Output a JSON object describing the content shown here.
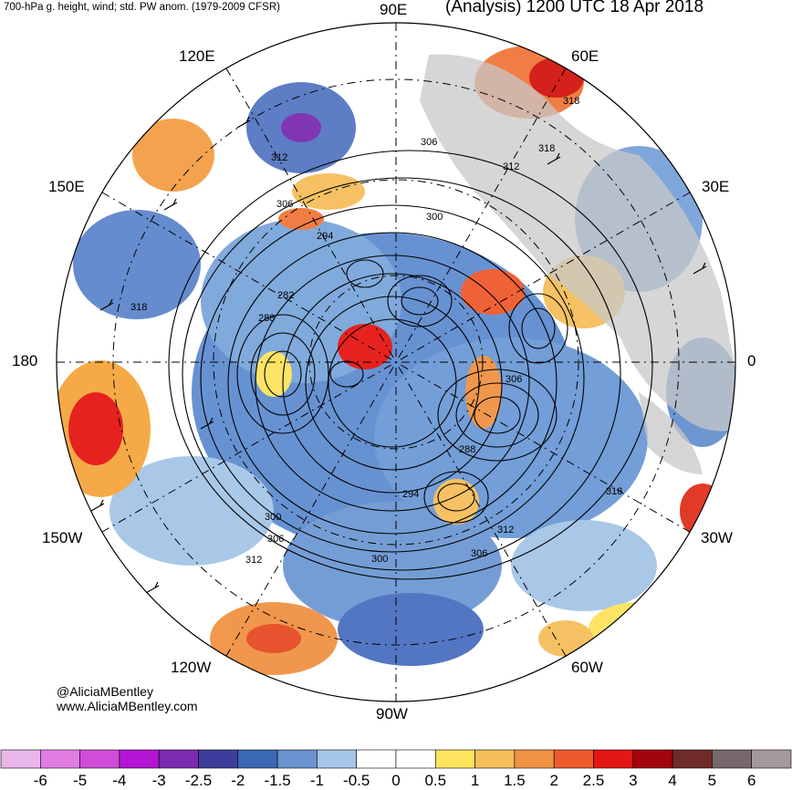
{
  "header": {
    "left_title": "700-hPa g. height, wind; std. PW anom. (1979-2009 CFSR)",
    "right_title": "(Analysis) 1200 UTC 18 Apr 2018"
  },
  "longitude_labels": {
    "lon_90e": "90E",
    "lon_60e": "60E",
    "lon_120e": "120E",
    "lon_30e": "30E",
    "lon_150e": "150E",
    "lon_180": "180",
    "lon_0": "0",
    "lon_150w": "150W",
    "lon_30w": "30W",
    "lon_120w": "120W",
    "lon_60w": "60W",
    "lon_90w": "90W"
  },
  "contour_labels": [
    "318",
    "312",
    "306",
    "300",
    "294",
    "288",
    "282"
  ],
  "credits": {
    "handle": "@AliciaMBentley",
    "website": "www.AliciaMBentley.com"
  },
  "colorbar": {
    "ticks": [
      "-6",
      "-5",
      "-4",
      "-3",
      "-2.5",
      "-2",
      "-1.5",
      "-1",
      "-0.5",
      "0",
      "0.5",
      "1",
      "1.5",
      "2",
      "2.5",
      "3",
      "4",
      "5",
      "6"
    ],
    "colors": [
      "#e9b6ea",
      "#e27de4",
      "#d04cd9",
      "#b415d4",
      "#7a2bb0",
      "#3f3d9b",
      "#3a68b5",
      "#6a93cf",
      "#a5c6e6",
      "#ffffff",
      "#ffffff",
      "#fde35e",
      "#f5be5b",
      "#f09244",
      "#ef5a2d",
      "#e51714",
      "#a3050d",
      "#6e2b28",
      "#76686b",
      "#a5999b"
    ]
  },
  "map_colors": {
    "land_gray": "#c8c8c8",
    "negative_anomaly": "#4f79c6",
    "positive_anomaly": "#f2a03d"
  }
}
